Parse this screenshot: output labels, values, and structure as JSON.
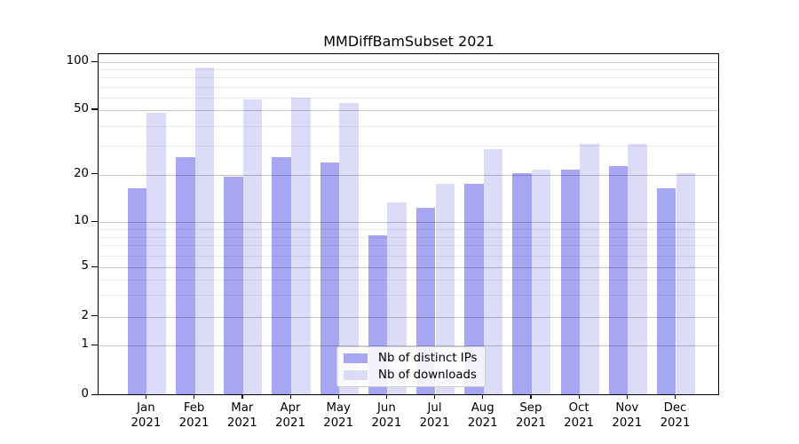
{
  "chart_data": {
    "type": "bar",
    "title": "MMDiffBamSubset 2021",
    "categories": [
      "Jan 2021",
      "Feb 2021",
      "Mar 2021",
      "Apr 2021",
      "May 2021",
      "Jun 2021",
      "Jul 2021",
      "Aug 2021",
      "Sep 2021",
      "Oct 2021",
      "Nov 2021",
      "Dec 2021"
    ],
    "series": [
      {
        "name": "Nb of distinct IPs",
        "color": "#a6a6f2",
        "values": [
          16,
          25,
          19,
          25,
          23,
          8,
          12,
          17,
          20,
          21,
          22,
          16
        ]
      },
      {
        "name": "Nb of downloads",
        "color": "#dcdcf8",
        "values": [
          47,
          90,
          57,
          58,
          54,
          13,
          17,
          28,
          21,
          30,
          30,
          20
        ]
      }
    ],
    "yscale": "symlog",
    "yticks": [
      100,
      50,
      20,
      10,
      5,
      2,
      1,
      0
    ],
    "minor_yticks": [
      3,
      4,
      6,
      7,
      8,
      9,
      30,
      40,
      60,
      70,
      80,
      90
    ],
    "ylim": [
      0,
      114
    ],
    "grid": true,
    "legend_position": "lower center",
    "colors": {
      "grid_major": "#c7c7c7",
      "grid_minor": "#ebebeb",
      "spine": "#000000",
      "text": "#000000"
    }
  }
}
